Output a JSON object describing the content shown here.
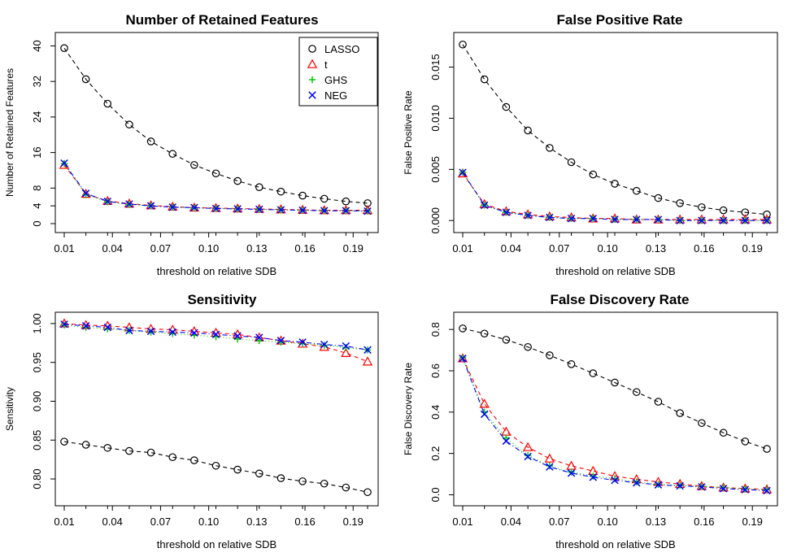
{
  "chart_data": [
    {
      "type": "line",
      "title": "Number of Retained Features",
      "xlabel": "threshold on relative SDB",
      "ylabel": "Number of Retained Features",
      "xlim": [
        0.01,
        0.2
      ],
      "ylim": [
        0,
        41
      ],
      "xticks": [
        "0.01",
        "0.04",
        "0.07",
        "0.10",
        "0.13",
        "0.16",
        "0.19"
      ],
      "yticks": [
        "0",
        "4",
        "8",
        "16",
        "24",
        "32",
        "40"
      ],
      "legend": {
        "position": "top-right",
        "entries": [
          "LASSO",
          "t",
          "GHS",
          "NEG"
        ]
      },
      "x": [
        0.01,
        0.0235,
        0.037,
        0.0505,
        0.064,
        0.0775,
        0.091,
        0.1045,
        0.118,
        0.1315,
        0.145,
        0.1585,
        0.172,
        0.1855,
        0.199
      ],
      "series": [
        {
          "name": "LASSO",
          "color": "#000000",
          "marker": "circle",
          "dash": "5,4",
          "values": [
            39.5,
            32.5,
            27,
            22.3,
            18.5,
            15.7,
            13.2,
            11.3,
            9.6,
            8.2,
            7.2,
            6.3,
            5.6,
            5.0,
            4.6
          ]
        },
        {
          "name": "t",
          "color": "#FF0000",
          "marker": "triangle",
          "dash": "5,4",
          "values": [
            13.2,
            6.7,
            5.1,
            4.5,
            4.1,
            3.8,
            3.6,
            3.5,
            3.4,
            3.3,
            3.2,
            3.1,
            3.0,
            3.0,
            3.0
          ]
        },
        {
          "name": "GHS",
          "color": "#00CD00",
          "marker": "plus",
          "dash": "1,3",
          "values": [
            13.5,
            6.5,
            4.9,
            4.3,
            4.0,
            3.7,
            3.5,
            3.4,
            3.3,
            3.2,
            3.1,
            3.0,
            2.9,
            2.9,
            2.8
          ]
        },
        {
          "name": "NEG",
          "color": "#0000FF",
          "marker": "cross",
          "dash": "6,3,1,3",
          "values": [
            13.6,
            6.8,
            5.0,
            4.4,
            4.0,
            3.7,
            3.6,
            3.4,
            3.3,
            3.2,
            3.1,
            3.0,
            2.9,
            2.9,
            2.8
          ]
        }
      ]
    },
    {
      "type": "line",
      "title": "False Positive Rate",
      "xlabel": "threshold on relative SDB",
      "ylabel": "False Positive Rate",
      "xlim": [
        0.01,
        0.2
      ],
      "ylim": [
        -0.0003,
        0.0175
      ],
      "xticks": [
        "0.01",
        "0.04",
        "0.07",
        "0.10",
        "0.13",
        "0.16",
        "0.19"
      ],
      "yticks": [
        "0.000",
        "0.005",
        "0.010",
        "0.015"
      ],
      "x": [
        0.01,
        0.0235,
        0.037,
        0.0505,
        0.064,
        0.0775,
        0.091,
        0.1045,
        0.118,
        0.1315,
        0.145,
        0.1585,
        0.172,
        0.1855,
        0.199
      ],
      "series": [
        {
          "name": "LASSO",
          "color": "#000000",
          "marker": "circle",
          "dash": "5,4",
          "values": [
            0.0172,
            0.0138,
            0.0111,
            0.0088,
            0.0071,
            0.0057,
            0.0045,
            0.0036,
            0.0029,
            0.0022,
            0.0017,
            0.0013,
            0.001,
            0.0008,
            0.0006
          ]
        },
        {
          "name": "t",
          "color": "#FF0000",
          "marker": "triangle",
          "dash": "5,4",
          "values": [
            0.0046,
            0.0016,
            0.0009,
            0.0006,
            0.0004,
            0.0003,
            0.0002,
            0.0002,
            0.0001,
            0.0001,
            0.0001,
            0.0001,
            0.0001,
            0.0001,
            0.0001
          ]
        },
        {
          "name": "GHS",
          "color": "#00CD00",
          "marker": "plus",
          "dash": "1,3",
          "values": [
            0.0047,
            0.0015,
            0.0008,
            0.0005,
            0.0003,
            0.0002,
            0.0002,
            0.0001,
            0.0001,
            0.0001,
            0.0,
            0.0,
            0.0,
            0.0,
            0.0
          ]
        },
        {
          "name": "NEG",
          "color": "#0000FF",
          "marker": "cross",
          "dash": "6,3,1,3",
          "values": [
            0.0047,
            0.0015,
            0.0008,
            0.0005,
            0.0003,
            0.0002,
            0.0002,
            0.0001,
            0.0001,
            0.0001,
            0.0,
            0.0,
            0.0,
            0.0,
            0.0
          ]
        }
      ]
    },
    {
      "type": "line",
      "title": "Sensitivity",
      "xlabel": "threshold on relative SDB",
      "ylabel": "Sensitivity",
      "xlim": [
        0.01,
        0.2
      ],
      "ylim": [
        0.777,
        1.003
      ],
      "xticks": [
        "0.01",
        "0.04",
        "0.07",
        "0.10",
        "0.13",
        "0.16",
        "0.19"
      ],
      "yticks": [
        "0.80",
        "0.85",
        "0.90",
        "0.95",
        "1.00"
      ],
      "x": [
        0.01,
        0.0235,
        0.037,
        0.0505,
        0.064,
        0.0775,
        0.091,
        0.1045,
        0.118,
        0.1315,
        0.145,
        0.1585,
        0.172,
        0.1855,
        0.199
      ],
      "series": [
        {
          "name": "LASSO",
          "color": "#000000",
          "marker": "circle",
          "dash": "5,4",
          "values": [
            0.848,
            0.844,
            0.84,
            0.836,
            0.834,
            0.828,
            0.824,
            0.817,
            0.812,
            0.807,
            0.801,
            0.797,
            0.794,
            0.789,
            0.783
          ]
        },
        {
          "name": "t",
          "color": "#FF0000",
          "marker": "triangle",
          "dash": "5,4",
          "values": [
            1.0,
            0.998,
            0.997,
            0.995,
            0.993,
            0.992,
            0.99,
            0.988,
            0.986,
            0.982,
            0.978,
            0.974,
            0.97,
            0.962,
            0.951
          ]
        },
        {
          "name": "GHS",
          "color": "#00CD00",
          "marker": "plus",
          "dash": "1,3",
          "values": [
            0.998,
            0.995,
            0.993,
            0.991,
            0.989,
            0.987,
            0.985,
            0.983,
            0.98,
            0.978,
            0.976,
            0.974,
            0.972,
            0.969,
            0.966
          ]
        },
        {
          "name": "NEG",
          "color": "#0000FF",
          "marker": "cross",
          "dash": "6,3,1,3",
          "values": [
            0.999,
            0.997,
            0.995,
            0.991,
            0.99,
            0.989,
            0.988,
            0.986,
            0.984,
            0.982,
            0.978,
            0.976,
            0.973,
            0.971,
            0.966
          ]
        }
      ]
    },
    {
      "type": "line",
      "title": "False Discovery Rate",
      "xlabel": "threshold on relative SDB",
      "ylabel": "False Discovery Rate",
      "xlim": [
        0.01,
        0.2
      ],
      "ylim": [
        -0.01,
        0.84
      ],
      "xticks": [
        "0.01",
        "0.04",
        "0.07",
        "0.10",
        "0.13",
        "0.16",
        "0.19"
      ],
      "yticks": [
        "0.0",
        "0.2",
        "0.4",
        "0.6",
        "0.8"
      ],
      "x": [
        0.01,
        0.0235,
        0.037,
        0.0505,
        0.064,
        0.0775,
        0.091,
        0.1045,
        0.118,
        0.1315,
        0.145,
        0.1585,
        0.172,
        0.1855,
        0.199
      ],
      "series": [
        {
          "name": "LASSO",
          "color": "#000000",
          "marker": "circle",
          "dash": "5,4",
          "values": [
            0.805,
            0.78,
            0.75,
            0.715,
            0.675,
            0.632,
            0.588,
            0.543,
            0.497,
            0.45,
            0.395,
            0.347,
            0.3,
            0.258,
            0.222
          ]
        },
        {
          "name": "t",
          "color": "#FF0000",
          "marker": "triangle",
          "dash": "5,4",
          "values": [
            0.66,
            0.44,
            0.305,
            0.23,
            0.175,
            0.14,
            0.115,
            0.09,
            0.075,
            0.062,
            0.052,
            0.042,
            0.035,
            0.03,
            0.026
          ]
        },
        {
          "name": "GHS",
          "color": "#00CD00",
          "marker": "plus",
          "dash": "1,3",
          "values": [
            0.663,
            0.4,
            0.275,
            0.19,
            0.14,
            0.11,
            0.09,
            0.078,
            0.062,
            0.05,
            0.045,
            0.04,
            0.035,
            0.028,
            0.025
          ]
        },
        {
          "name": "NEG",
          "color": "#0000FF",
          "marker": "cross",
          "dash": "6,3,1,3",
          "values": [
            0.66,
            0.39,
            0.26,
            0.185,
            0.135,
            0.105,
            0.085,
            0.07,
            0.058,
            0.048,
            0.043,
            0.038,
            0.03,
            0.025,
            0.02
          ]
        }
      ]
    }
  ]
}
